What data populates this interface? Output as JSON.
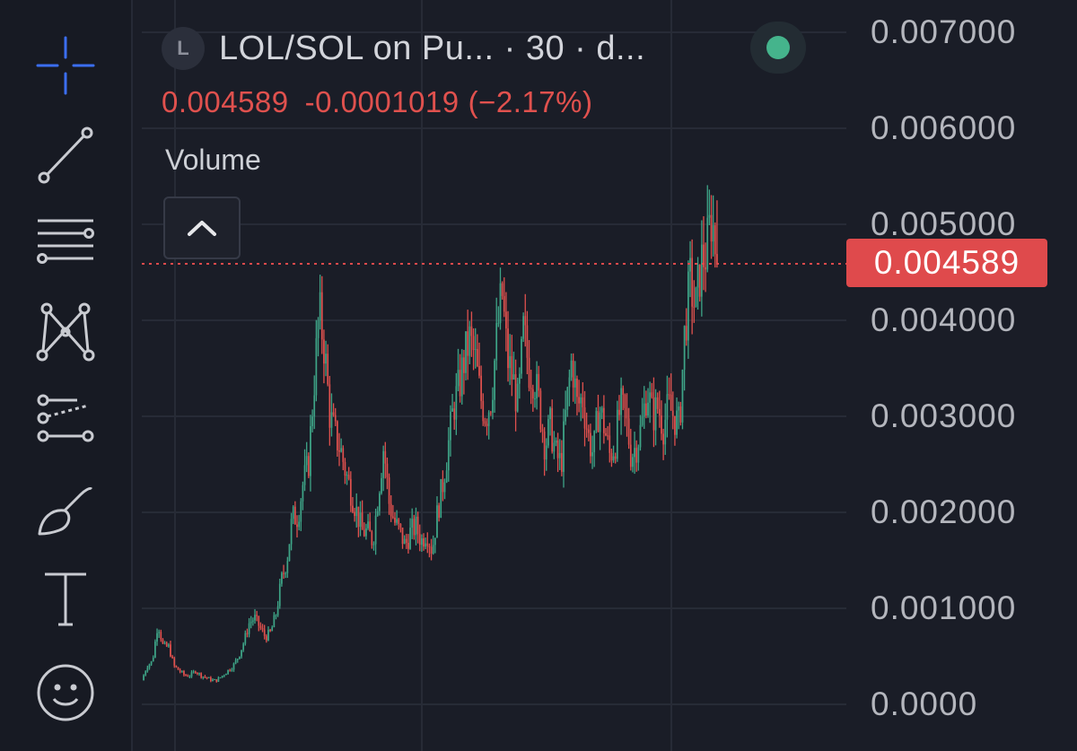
{
  "toolbar": {
    "items": [
      {
        "name": "crosshair-icon",
        "active": true
      },
      {
        "name": "trend-line-icon"
      },
      {
        "name": "horizontal-lines-icon"
      },
      {
        "name": "pattern-icon"
      },
      {
        "name": "prediction-icon"
      },
      {
        "name": "brush-icon"
      },
      {
        "name": "text-icon"
      },
      {
        "name": "emoji-icon"
      }
    ]
  },
  "legend": {
    "symbol_badge": "L",
    "title": "LOL/SOL on Pu... · 30 · d...",
    "close": "0.004589",
    "change": "-0.0001019",
    "change_pct": "(−2.17%)",
    "status": "market-open"
  },
  "indicator": {
    "volume_label": "Volume"
  },
  "colors": {
    "background": "#1a1d27",
    "up": "#3ea487",
    "down": "#e0514e",
    "price_line": "#df4a4c",
    "grid": "#272b36",
    "status_dot": "#45b48c"
  },
  "price_label": "0.004589",
  "chart_data": {
    "type": "candlestick",
    "interval": "30",
    "y_axis_ticks": [
      "0.007000",
      "0.006000",
      "0.005000",
      "0.004000",
      "0.003000",
      "0.002000",
      "0.001000",
      "0.0000"
    ],
    "ylim": [
      0,
      0.007
    ],
    "current_price": 0.004589,
    "price_path": [
      [
        0,
        0.00025
      ],
      [
        1,
        0.0004
      ],
      [
        2,
        0.00045
      ],
      [
        3,
        0.00085
      ],
      [
        4,
        0.0006
      ],
      [
        5,
        0.0006
      ],
      [
        6,
        0.0004
      ],
      [
        7,
        0.00035
      ],
      [
        8,
        0.0003
      ],
      [
        9,
        0.0003
      ],
      [
        10,
        0.00035
      ],
      [
        11,
        0.0003
      ],
      [
        12,
        0.00028
      ],
      [
        13,
        0.00025
      ],
      [
        14,
        0.00025
      ],
      [
        15,
        0.0003
      ],
      [
        16,
        0.00035
      ],
      [
        17,
        0.0004
      ],
      [
        18,
        0.0005
      ],
      [
        19,
        0.00065
      ],
      [
        20,
        0.00085
      ],
      [
        21,
        0.0009
      ],
      [
        22,
        0.0008
      ],
      [
        23,
        0.0007
      ],
      [
        24,
        0.00075
      ],
      [
        25,
        0.00095
      ],
      [
        26,
        0.0013
      ],
      [
        27,
        0.0015
      ],
      [
        28,
        0.00195
      ],
      [
        29,
        0.00195
      ],
      [
        30,
        0.0023
      ],
      [
        31,
        0.0025
      ],
      [
        32,
        0.0033
      ],
      [
        33,
        0.0041
      ],
      [
        34,
        0.0037
      ],
      [
        35,
        0.003
      ],
      [
        36,
        0.0028
      ],
      [
        37,
        0.00265
      ],
      [
        38,
        0.0024
      ],
      [
        39,
        0.0022
      ],
      [
        40,
        0.002
      ],
      [
        41,
        0.0018
      ],
      [
        42,
        0.0018
      ],
      [
        43,
        0.0017
      ],
      [
        44,
        0.0022
      ],
      [
        45,
        0.0027
      ],
      [
        46,
        0.0021
      ],
      [
        47,
        0.0019
      ],
      [
        48,
        0.0018
      ],
      [
        49,
        0.00165
      ],
      [
        50,
        0.0018
      ],
      [
        51,
        0.00185
      ],
      [
        52,
        0.0017
      ],
      [
        53,
        0.0018
      ],
      [
        54,
        0.0016
      ],
      [
        55,
        0.002
      ],
      [
        56,
        0.0023
      ],
      [
        57,
        0.0027
      ],
      [
        58,
        0.0031
      ],
      [
        59,
        0.0033
      ],
      [
        60,
        0.0036
      ],
      [
        61,
        0.0038
      ],
      [
        62,
        0.0036
      ],
      [
        63,
        0.0032
      ],
      [
        64,
        0.003
      ],
      [
        65,
        0.0032
      ],
      [
        66,
        0.0038
      ],
      [
        67,
        0.0043
      ],
      [
        68,
        0.0036
      ],
      [
        69,
        0.0034
      ],
      [
        70,
        0.0031
      ],
      [
        71,
        0.0039
      ],
      [
        72,
        0.0035
      ],
      [
        73,
        0.0034
      ],
      [
        74,
        0.0031
      ],
      [
        75,
        0.0027
      ],
      [
        76,
        0.0029
      ],
      [
        77,
        0.0026
      ],
      [
        78,
        0.0025
      ],
      [
        79,
        0.0031
      ],
      [
        80,
        0.0036
      ],
      [
        81,
        0.0031
      ],
      [
        82,
        0.0032
      ],
      [
        83,
        0.0028
      ],
      [
        84,
        0.0026
      ],
      [
        85,
        0.0031
      ],
      [
        86,
        0.0029
      ],
      [
        87,
        0.0026
      ],
      [
        88,
        0.0027
      ],
      [
        89,
        0.0031
      ],
      [
        90,
        0.003
      ],
      [
        91,
        0.0026
      ],
      [
        92,
        0.0027
      ],
      [
        93,
        0.0029
      ],
      [
        94,
        0.0033
      ],
      [
        95,
        0.003
      ],
      [
        96,
        0.0031
      ],
      [
        97,
        0.0029
      ],
      [
        98,
        0.0031
      ],
      [
        99,
        0.003
      ],
      [
        100,
        0.0029
      ],
      [
        101,
        0.0039
      ],
      [
        102,
        0.0044
      ],
      [
        103,
        0.0041
      ],
      [
        104,
        0.0046
      ],
      [
        105,
        0.0047
      ],
      [
        106,
        0.0051
      ],
      [
        107,
        0.0046
      ]
    ],
    "last_candle": {
      "open": 0.004691,
      "high": 0.00525,
      "low": 0.00455,
      "close": 0.004589
    },
    "grid": true
  }
}
